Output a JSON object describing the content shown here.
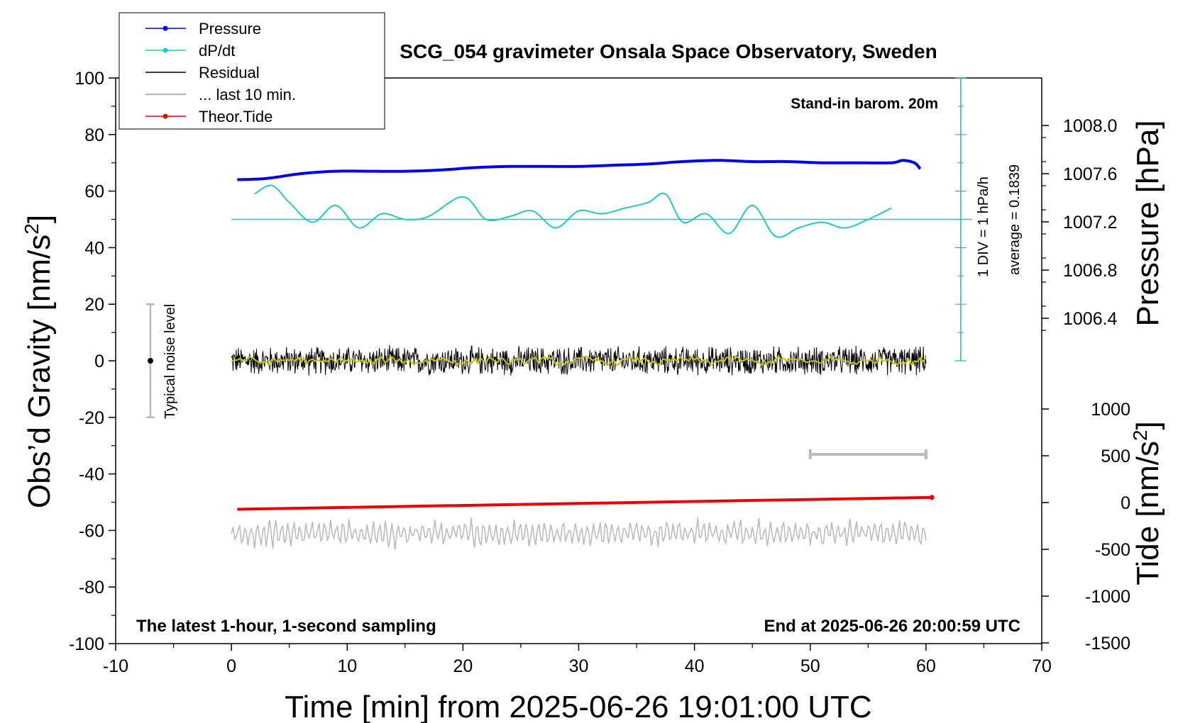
{
  "chart_data": {
    "type": "line",
    "title": "SCG_054 gravimeter Onsala Space Observatory, Sweden",
    "xlabel": "Time [min] from 2025-06-26 19:01:00 UTC",
    "ylabel_left": "Obs’d Gravity [nm/s",
    "ylabel_left_sup": "2",
    "ylabel_left_end": "]",
    "ylabel_right_pressure": "Pressure [hPa]",
    "ylabel_right_tide": "Tide [nm/s",
    "ylabel_right_tide_sup": "2",
    "ylabel_right_tide_end": "]",
    "xlim": [
      -10,
      70
    ],
    "ylim": [
      -100,
      100
    ],
    "xticks": [
      "-10",
      "0",
      "10",
      "20",
      "30",
      "40",
      "50",
      "60",
      "70"
    ],
    "yticks": [
      "100",
      "80",
      "60",
      "40",
      "20",
      "0",
      "-20",
      "-40",
      "-60",
      "-80",
      "-100"
    ],
    "pressure_ticks": [
      "1008.0",
      "1007.6",
      "1007.2",
      "1006.8",
      "1006.4"
    ],
    "tide_ticks": [
      "1000",
      "500",
      "0",
      "-500",
      "-1000",
      "-1500"
    ],
    "annotations": {
      "stand_in": "Stand-in barom. 20m",
      "div": "1 DIV = 1 hPa/h",
      "average": "average = 0.1839",
      "noise": "Typical noise level",
      "latest": "The latest 1-hour, 1-second sampling",
      "end": "End at 2025-06-26 20:00:59 UTC"
    },
    "legend": [
      {
        "label": "Pressure",
        "color": "#0000ee"
      },
      {
        "label": "dP/dt",
        "color": "#20c8c8"
      },
      {
        "label": "Residual",
        "color": "#000000"
      },
      {
        "label": "... last 10 min.",
        "color": "#bbbbbb"
      },
      {
        "label": "Theor.Tide",
        "color": "#ee0000"
      }
    ],
    "series": [
      {
        "name": "Pressure",
        "unit": "hPa",
        "color": "#0000ee",
        "x": [
          0.5,
          3,
          6,
          9,
          12,
          15,
          18,
          21,
          24,
          27,
          30,
          33,
          36,
          39,
          42,
          45,
          48,
          51,
          54,
          57,
          58,
          59,
          59.5
        ],
        "values": [
          1007.55,
          1007.56,
          1007.6,
          1007.62,
          1007.62,
          1007.62,
          1007.63,
          1007.65,
          1007.66,
          1007.66,
          1007.66,
          1007.67,
          1007.68,
          1007.7,
          1007.71,
          1007.7,
          1007.7,
          1007.69,
          1007.69,
          1007.69,
          1007.71,
          1007.69,
          1007.64
        ]
      },
      {
        "name": "dP/dt",
        "unit": "nm/s2 plot units",
        "color": "#20c8c8",
        "x": [
          2,
          3.5,
          5,
          7,
          9,
          11,
          13,
          15,
          17,
          20,
          22,
          24,
          26,
          28,
          30,
          32,
          34,
          36,
          37.5,
          39,
          41,
          43,
          45,
          47,
          49,
          51,
          53,
          55,
          57
        ],
        "values": [
          59,
          62,
          56,
          49,
          55,
          47,
          52,
          50,
          51,
          58,
          50,
          51,
          53,
          47,
          53,
          52,
          54,
          56,
          59,
          49,
          52,
          45,
          55,
          44,
          47,
          49,
          47,
          50,
          54
        ]
      },
      {
        "name": "Residual",
        "unit": "nm/s2",
        "color": "#000000",
        "x_range": [
          0,
          60
        ],
        "mean": 0,
        "amplitude": 5
      },
      {
        "name": "... last 10 min.",
        "color": "#bbbbbb",
        "x_range": [
          0,
          60
        ],
        "mean": -61,
        "amplitude": 4
      },
      {
        "name": "Theor.Tide",
        "unit": "nm/s2",
        "color": "#ee0000",
        "x": [
          0.5,
          60.5
        ],
        "values": [
          -52.5,
          -48.3
        ]
      }
    ],
    "reference_line_y": 50,
    "noise_bar": {
      "x": -7,
      "ylim": [
        -20,
        20
      ]
    },
    "scale_bar_x": [
      50,
      60
    ],
    "legend_position": "top-left",
    "grid": false
  }
}
